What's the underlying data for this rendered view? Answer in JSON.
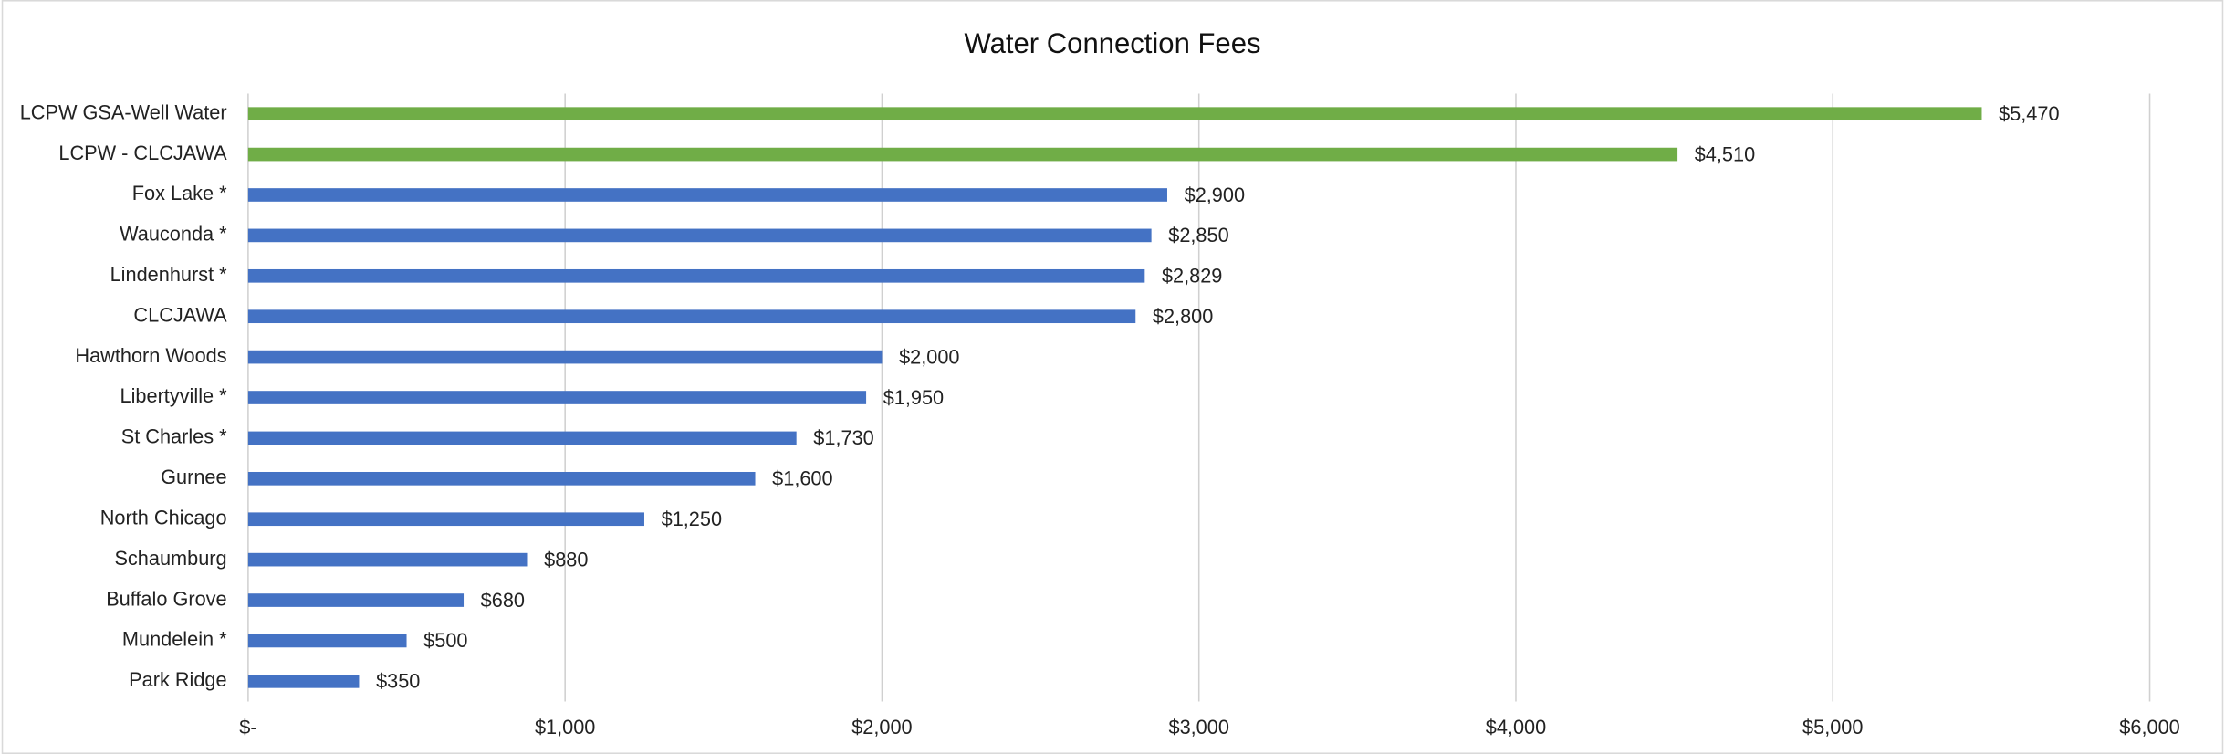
{
  "chart_data": {
    "type": "barh",
    "title": "Water Connection  Fees",
    "categories": [
      "LCPW GSA-Well Water",
      "LCPW - CLCJAWA",
      "Fox Lake *",
      "Wauconda *",
      "Lindenhurst *",
      "CLCJAWA",
      "Hawthorn Woods",
      "Libertyville *",
      "St Charles *",
      "Gurnee",
      "North Chicago",
      "Schaumburg",
      "Buffalo Grove",
      "Mundelein *",
      "Park Ridge"
    ],
    "values": [
      5470,
      4510,
      2900,
      2850,
      2829,
      2800,
      2000,
      1950,
      1730,
      1600,
      1250,
      880,
      680,
      500,
      350
    ],
    "value_labels": [
      "$5,470",
      "$4,510",
      "$2,900",
      "$2,850",
      "$2,829",
      "$2,800",
      "$2,000",
      "$1,950",
      "$1,730",
      "$1,600",
      "$1,250",
      "$880",
      "$680",
      "$500",
      "$350"
    ],
    "colors": [
      "#70ad47",
      "#70ad47",
      "#4472c4",
      "#4472c4",
      "#4472c4",
      "#4472c4",
      "#4472c4",
      "#4472c4",
      "#4472c4",
      "#4472c4",
      "#4472c4",
      "#4472c4",
      "#4472c4",
      "#4472c4",
      "#4472c4"
    ],
    "xlim": [
      0,
      6000
    ],
    "xticks": [
      {
        "value": 0,
        "label": "$-"
      },
      {
        "value": 1000,
        "label": "$1,000"
      },
      {
        "value": 2000,
        "label": "$2,000"
      },
      {
        "value": 3000,
        "label": "$3,000"
      },
      {
        "value": 4000,
        "label": "$4,000"
      },
      {
        "value": 5000,
        "label": "$5,000"
      },
      {
        "value": 6000,
        "label": "$6,000"
      }
    ],
    "grid": true
  }
}
